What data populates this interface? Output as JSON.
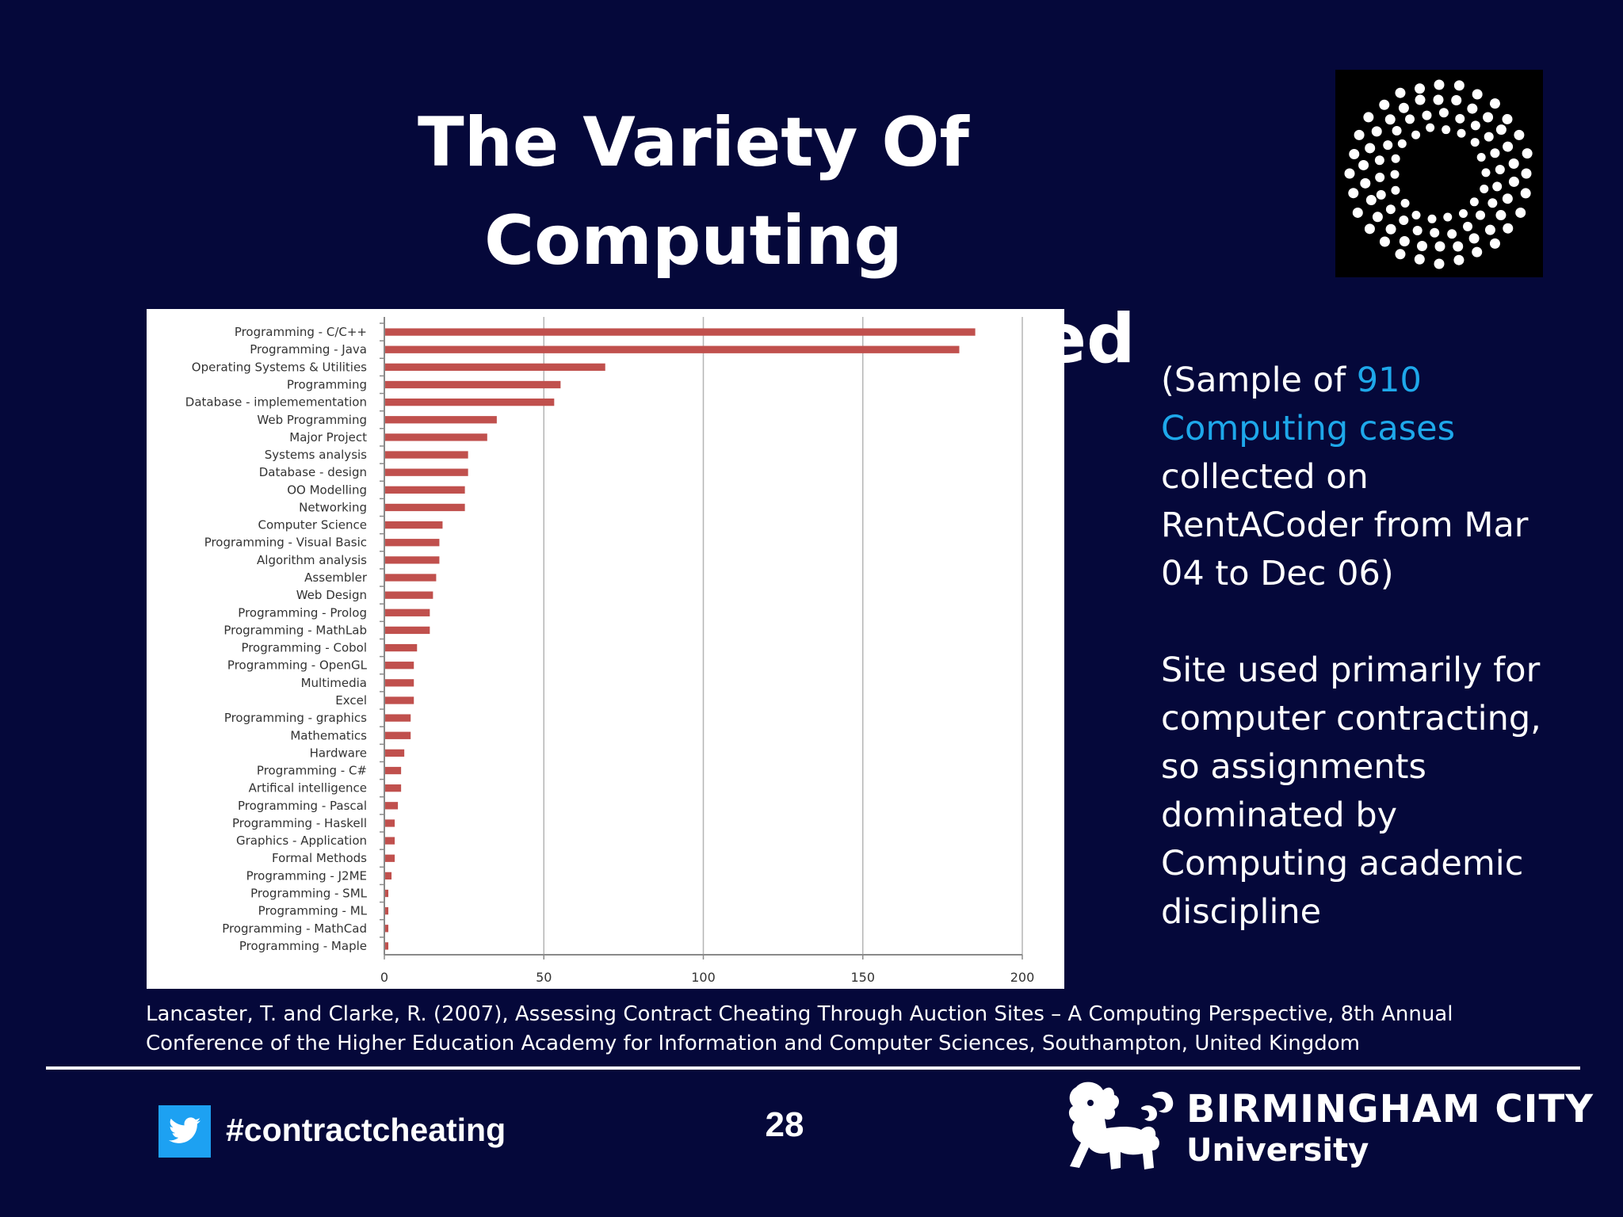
{
  "slide": {
    "title_line1": "The Variety Of Computing",
    "title_line2": "Assignments Observed",
    "page_number": "28"
  },
  "sidebar": {
    "p1_before": "(Sample of ",
    "p1_highlight": "910 Computing cases",
    "p1_after": " collected on RentACoder from Mar 04 to Dec 06)",
    "p2": "Site used primarily for computer contracting, so assignments dominated by Computing academic discipline"
  },
  "citation": {
    "line1": "Lancaster, T. and Clarke, R. (2007), Assessing Contract Cheating Through Auction Sites – A Computing Perspective, 8th Annual",
    "line2": "Conference of the Higher Education Academy for Information and Computer Sciences, Southampton, United Kingdom"
  },
  "footer": {
    "hashtag": "#contractcheating",
    "uni_line1": "BIRMINGHAM CITY",
    "uni_line2": "University"
  },
  "colors": {
    "background": "#05083a",
    "accent": "#1ea8ea",
    "bar": "#c0504d"
  },
  "icons": {
    "twitter": "twitter-bird-icon",
    "logo": "dot-ring-logo",
    "crest": "lion-crest-icon"
  },
  "chart_data": {
    "type": "bar",
    "orientation": "horizontal",
    "categories": [
      "Programming - C/C++",
      "Programming - Java",
      "Operating Systems & Utilities",
      "Programming",
      "Database - implemementation",
      "Web Programming",
      "Major Project",
      "Systems analysis",
      "Database - design",
      "OO Modelling",
      "Networking",
      "Computer Science",
      "Programming - Visual Basic",
      "Algorithm analysis",
      "Assembler",
      "Web Design",
      "Programming - Prolog",
      "Programming - MathLab",
      "Programming - Cobol",
      "Programming - OpenGL",
      "Multimedia",
      "Excel",
      "Programming - graphics",
      "Mathematics",
      "Hardware",
      "Programming - C#",
      "Artifical intelligence",
      "Programming - Pascal",
      "Programming - Haskell",
      "Graphics - Application",
      "Formal Methods",
      "Programming - J2ME",
      "Programming - SML",
      "Programming - ML",
      "Programming - MathCad",
      "Programming - Maple"
    ],
    "values": [
      185,
      180,
      69,
      55,
      53,
      35,
      32,
      26,
      26,
      25,
      25,
      18,
      17,
      17,
      16,
      15,
      14,
      14,
      10,
      9,
      9,
      9,
      8,
      8,
      6,
      5,
      5,
      4,
      3,
      3,
      3,
      2,
      1,
      1,
      1,
      1
    ],
    "xlim": [
      0,
      200
    ],
    "xticks": [
      "0",
      "50",
      "100",
      "150",
      "200"
    ],
    "grid": true,
    "legend": "none"
  }
}
